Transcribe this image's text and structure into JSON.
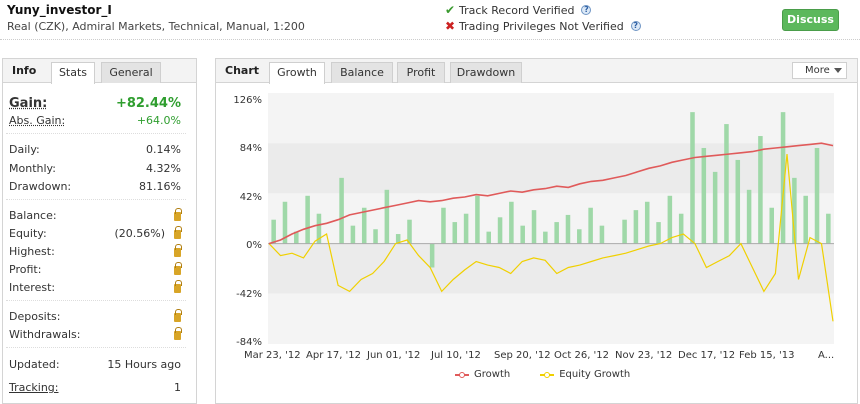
{
  "header": {
    "account_name": "Yuny_investor_I",
    "account_desc": "Real (CZK), Admiral Markets, Technical, Manual, 1:200",
    "verifications": [
      {
        "label": "Track Record Verified",
        "icon": "check-icon",
        "color": "#3a9a2f"
      },
      {
        "label": "Trading Privileges Not Verified",
        "icon": "cross-icon",
        "color": "#cc2222"
      }
    ],
    "discuss_label": "Discuss",
    "help_glyph": "?",
    "check_glyph": "✔",
    "cross_glyph": "✖"
  },
  "left_tabs": {
    "title": "Info",
    "tabs": [
      "Stats",
      "General"
    ]
  },
  "stats": {
    "gain": {
      "label": "Gain:",
      "value": "+82.44%"
    },
    "abs_gain": {
      "label": "Abs. Gain:",
      "value": "+64.0%"
    },
    "daily": {
      "label": "Daily:",
      "value": "0.14%"
    },
    "monthly": {
      "label": "Monthly:",
      "value": "4.32%"
    },
    "drawdown": {
      "label": "Drawdown:",
      "value": "81.16%"
    },
    "balance": {
      "label": "Balance:"
    },
    "equity": {
      "label": "Equity:",
      "value": "(20.56%)"
    },
    "highest": {
      "label": "Highest:"
    },
    "profit": {
      "label": "Profit:"
    },
    "interest": {
      "label": "Interest:"
    },
    "deposits": {
      "label": "Deposits:"
    },
    "withdrawals": {
      "label": "Withdrawals:"
    },
    "updated": {
      "label": "Updated:",
      "value": "15 Hours ago"
    },
    "tracking": {
      "label": "Tracking:",
      "value": "1"
    }
  },
  "right_tabs": {
    "title": "Chart",
    "tabs": [
      "Growth",
      "Balance",
      "Profit",
      "Drawdown"
    ],
    "more_label": "More"
  },
  "chart_data": {
    "type": "line",
    "y_ticks": [
      "126%",
      "84%",
      "42%",
      "0%",
      "-42%",
      "-84%"
    ],
    "ylim": [
      -84,
      126
    ],
    "x_ticks": [
      "Mar 23, '12",
      "Apr 17, '12",
      "Jun 01, '12",
      "Jul 10, '12",
      "Sep 20, '12",
      "Oct 26, '12",
      "Nov 23, '12",
      "Dec 17, '12",
      "Feb 15, '13",
      "A..."
    ],
    "colors": {
      "growth": "#e05a5a",
      "equity": "#f0d000",
      "bars": "#9fd8a8",
      "zero": "#aaaaaa"
    },
    "series": [
      {
        "name": "Growth",
        "values": [
          0,
          3,
          8,
          12,
          15,
          17,
          20,
          24,
          26,
          28,
          30,
          32,
          34,
          36,
          35,
          36,
          38,
          39,
          41,
          40,
          42,
          44,
          43,
          45,
          46,
          48,
          47,
          50,
          52,
          53,
          55,
          57,
          60,
          63,
          65,
          68,
          70,
          72,
          73,
          74,
          75,
          76,
          77,
          79,
          80,
          81,
          82,
          83,
          84,
          82
        ]
      },
      {
        "name": "Equity Growth",
        "values": [
          0,
          -10,
          -8,
          -12,
          2,
          8,
          -35,
          -40,
          -30,
          -25,
          -15,
          0,
          3,
          -10,
          -20,
          -40,
          -30,
          -22,
          -15,
          -18,
          -20,
          -25,
          -15,
          -12,
          -14,
          -25,
          -20,
          -18,
          -15,
          -12,
          -10,
          -8,
          -5,
          -2,
          0,
          5,
          8,
          0,
          -20,
          -15,
          -10,
          0,
          -20,
          -40,
          -25,
          75,
          -30,
          5,
          0,
          -65
        ]
      }
    ],
    "bars": [
      20,
      35,
      10,
      40,
      25,
      0,
      55,
      15,
      30,
      12,
      45,
      8,
      20,
      0,
      -20,
      30,
      18,
      25,
      40,
      10,
      22,
      35,
      15,
      28,
      10,
      18,
      24,
      12,
      30,
      15,
      0,
      20,
      28,
      35,
      18,
      40,
      25,
      110,
      80,
      60,
      100,
      70,
      45,
      90,
      30,
      110,
      55,
      40,
      80,
      25
    ],
    "legend": [
      {
        "label": "Growth",
        "color": "#e05a5a"
      },
      {
        "label": "Equity Growth",
        "color": "#f0d000"
      }
    ]
  }
}
